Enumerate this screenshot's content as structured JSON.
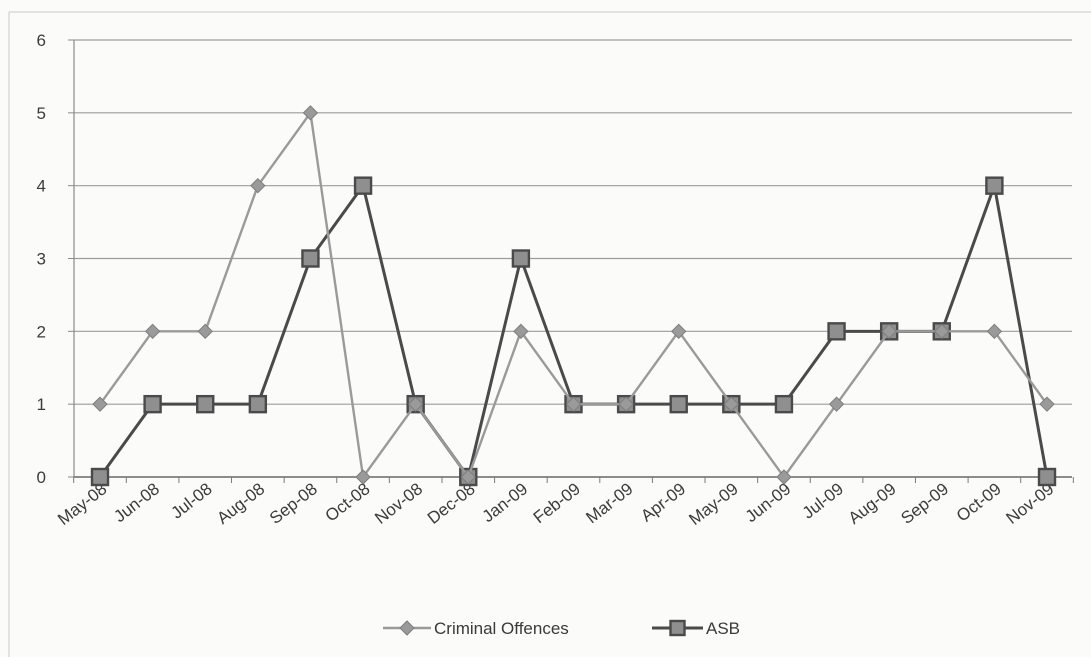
{
  "chart_data": {
    "type": "line",
    "title": "",
    "xlabel": "",
    "ylabel": "",
    "categories": [
      "May-08",
      "Jun-08",
      "Jul-08",
      "Aug-08",
      "Sep-08",
      "Oct-08",
      "Nov-08",
      "Dec-08",
      "Jan-09",
      "Feb-09",
      "Mar-09",
      "Apr-09",
      "May-09",
      "Jun-09",
      "Jul-09",
      "Aug-09",
      "Sep-09",
      "Oct-09",
      "Nov-09"
    ],
    "ylim": [
      0,
      6
    ],
    "yticks": [
      "0",
      "1",
      "2",
      "3",
      "4",
      "5",
      "6"
    ],
    "grid": true,
    "legend_position": "bottom",
    "series": [
      {
        "name": "Criminal Offences",
        "marker": "diamond",
        "color": "#9a9a9a",
        "values": [
          1,
          2,
          2,
          4,
          5,
          0,
          1,
          0,
          2,
          1,
          1,
          2,
          1,
          0,
          1,
          2,
          2,
          2,
          1
        ]
      },
      {
        "name": "ASB",
        "marker": "square",
        "color": "#4a4a4a",
        "values": [
          0,
          1,
          1,
          1,
          3,
          4,
          1,
          0,
          3,
          1,
          1,
          1,
          1,
          1,
          2,
          2,
          2,
          4,
          0
        ]
      }
    ]
  }
}
